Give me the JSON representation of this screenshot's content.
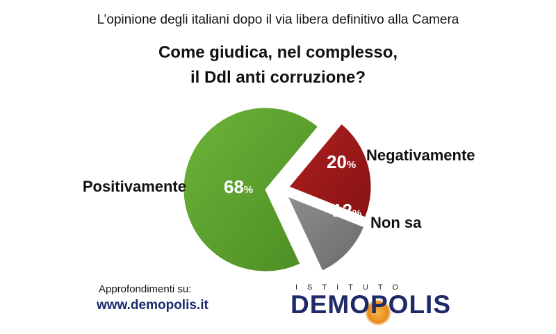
{
  "header": {
    "subtitle": "L’opinione degli italiani dopo il via libera definitivo alla Camera",
    "title_line1": "Come giudica, nel complesso,",
    "title_line2": "il Ddl anti corruzione?"
  },
  "chart_data": {
    "type": "pie",
    "slices": [
      {
        "label": "Positivamente",
        "value": 68,
        "display": "68",
        "color": "#5aa02c"
      },
      {
        "label": "Negativamente",
        "value": 20,
        "display": "20",
        "color": "#9e1a1a"
      },
      {
        "label": "Non sa",
        "value": 12,
        "display": "12",
        "color": "#7a7a7a"
      }
    ],
    "unit": "%"
  },
  "footer": {
    "label": "Approfondimenti su:",
    "url": "www.demopolis.it"
  },
  "logo": {
    "top_text": "ISTITUTO",
    "main_text": "DEMOPOLIS"
  }
}
